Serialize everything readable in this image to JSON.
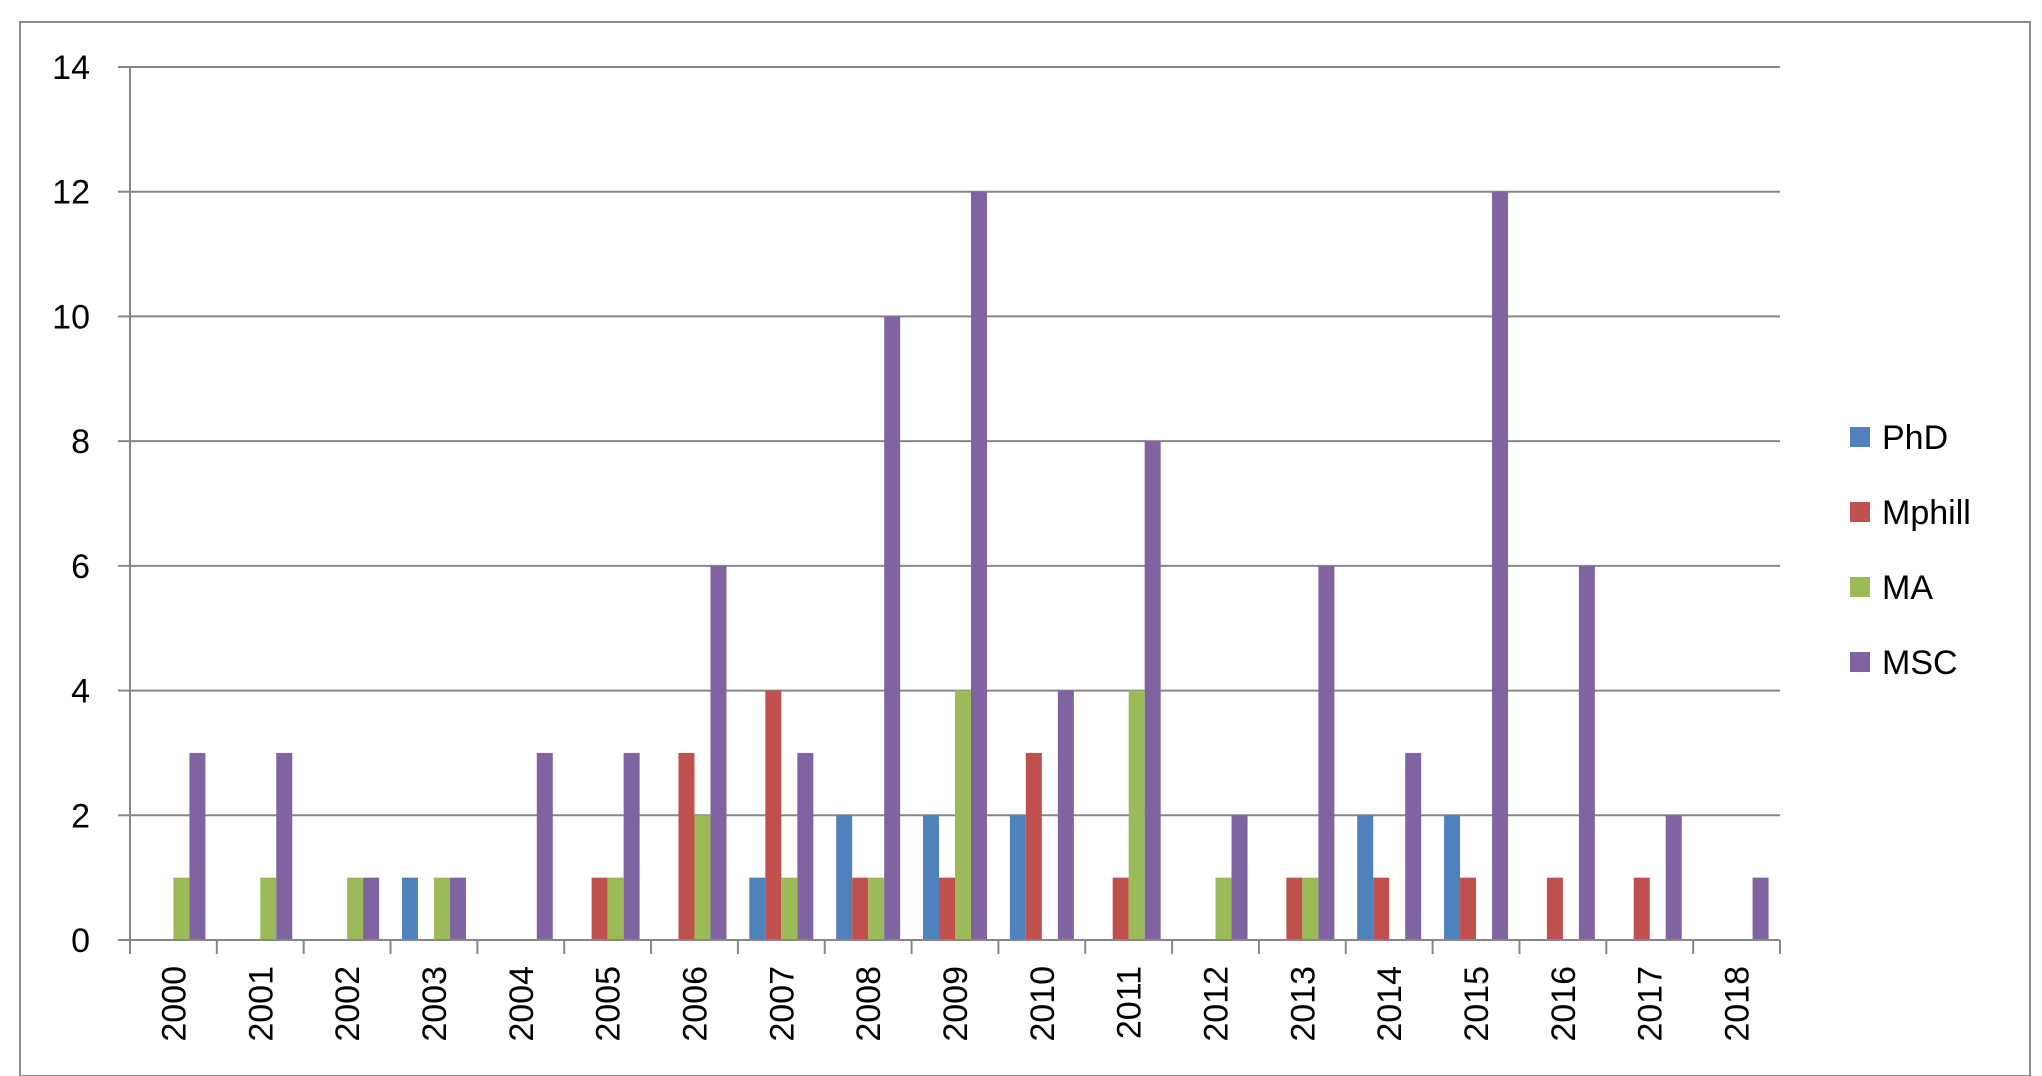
{
  "chart_data": {
    "type": "bar",
    "title": "",
    "xlabel": "",
    "ylabel": "",
    "ylim": [
      0,
      14
    ],
    "yticks": [
      0,
      2,
      4,
      6,
      8,
      10,
      12,
      14
    ],
    "grid": true,
    "legend_position": "right",
    "categories": [
      "2000",
      "2001",
      "2002",
      "2003",
      "2004",
      "2005",
      "2006",
      "2007",
      "2008",
      "2009",
      "2010",
      "2011",
      "2012",
      "2013",
      "2014",
      "2015",
      "2016",
      "2017",
      "2018"
    ],
    "series": [
      {
        "name": "PhD",
        "color": "#4f81bd",
        "values": [
          0,
          0,
          0,
          1,
          0,
          0,
          0,
          1,
          2,
          2,
          2,
          0,
          0,
          0,
          2,
          2,
          0,
          0,
          0
        ]
      },
      {
        "name": "Mphill",
        "color": "#c0504d",
        "values": [
          0,
          0,
          0,
          0,
          0,
          1,
          3,
          4,
          1,
          1,
          3,
          1,
          0,
          1,
          1,
          1,
          1,
          1,
          0
        ]
      },
      {
        "name": "MA",
        "color": "#9bbb59",
        "values": [
          1,
          1,
          1,
          1,
          0,
          1,
          2,
          1,
          1,
          4,
          0,
          4,
          1,
          1,
          0,
          0,
          0,
          0,
          0
        ]
      },
      {
        "name": "MSC",
        "color": "#8064a2",
        "values": [
          3,
          3,
          1,
          1,
          3,
          3,
          6,
          3,
          10,
          12,
          4,
          8,
          2,
          6,
          3,
          12,
          6,
          2,
          1
        ]
      }
    ]
  }
}
